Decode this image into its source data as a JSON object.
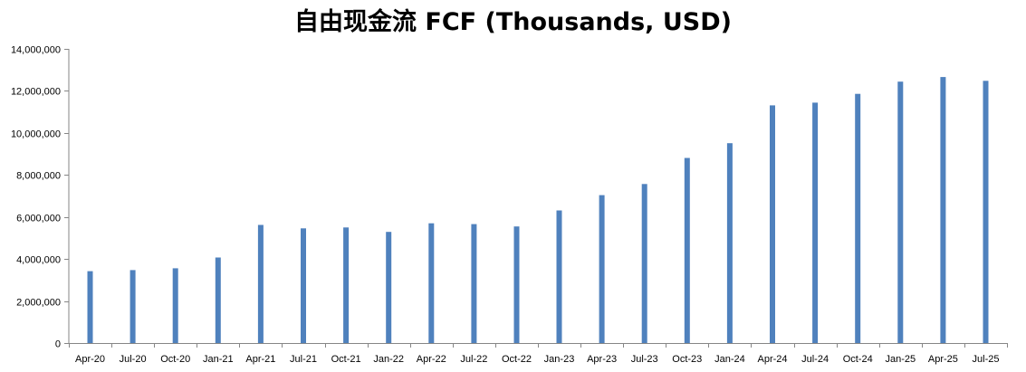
{
  "chart_data": {
    "type": "bar",
    "title": "自由现金流 FCF (Thousands, USD)",
    "xlabel": "",
    "ylabel": "",
    "ylim": [
      0,
      14000000
    ],
    "y_ticks": [
      0,
      2000000,
      4000000,
      6000000,
      8000000,
      10000000,
      12000000,
      14000000
    ],
    "y_tick_labels": [
      "0",
      "2,000,000",
      "4,000,000",
      "6,000,000",
      "8,000,000",
      "10,000,000",
      "12,000,000",
      "14,000,000"
    ],
    "grid": false,
    "legend": "none",
    "bar_color": "#4F81BD",
    "categories": [
      "Apr-20",
      "Jul-20",
      "Oct-20",
      "Jan-21",
      "Apr-21",
      "Jul-21",
      "Oct-21",
      "Jan-22",
      "Apr-22",
      "Jul-22",
      "Oct-22",
      "Jan-23",
      "Apr-23",
      "Jul-23",
      "Oct-23",
      "Jan-24",
      "Apr-24",
      "Jul-24",
      "Oct-24",
      "Jan-25",
      "Apr-25",
      "Jul-25"
    ],
    "values": [
      3420000,
      3470000,
      3560000,
      4070000,
      5620000,
      5460000,
      5500000,
      5290000,
      5700000,
      5660000,
      5550000,
      6310000,
      7040000,
      7570000,
      8810000,
      9510000,
      11310000,
      11440000,
      11860000,
      12440000,
      12660000,
      12480000
    ]
  }
}
